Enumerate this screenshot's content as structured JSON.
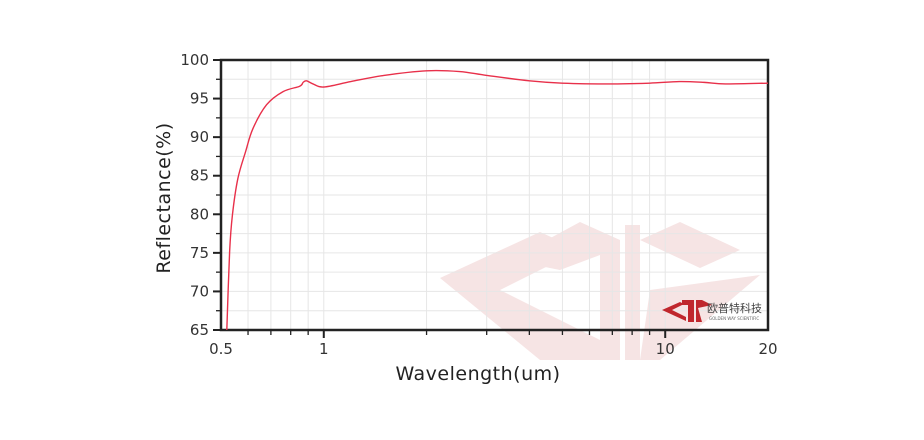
{
  "chart_data": {
    "type": "line",
    "title": "",
    "xlabel": "Wavelength(um)",
    "ylabel": "Reflectance(%)",
    "x_scale": "log",
    "xlim": [
      0.5,
      20
    ],
    "ylim": [
      65,
      100
    ],
    "x_ticks": [
      0.5,
      1,
      10,
      20
    ],
    "x_tick_labels": [
      "0.5",
      "1",
      "10",
      "20"
    ],
    "y_ticks": [
      65,
      70,
      75,
      80,
      85,
      90,
      95,
      100
    ],
    "y_tick_labels": [
      "65",
      "70",
      "75",
      "80",
      "85",
      "90",
      "95",
      "100"
    ],
    "grid": true,
    "line_color": "#e8304a",
    "series": [
      {
        "x": [
          0.52,
          0.53,
          0.54,
          0.56,
          0.59,
          0.62,
          0.68,
          0.76,
          0.85,
          0.87,
          0.89,
          0.93,
          1.0,
          1.2,
          1.5,
          2.0,
          2.5,
          3.0,
          4.0,
          5.0,
          7.0,
          9.0,
          11.0,
          13.0,
          15.0,
          20.0
        ],
        "y": [
          65,
          75.2,
          79.9,
          84.6,
          88.1,
          91.1,
          94.2,
          95.9,
          96.6,
          97.1,
          97.3,
          96.9,
          96.5,
          97.2,
          98.0,
          98.6,
          98.5,
          98.0,
          97.3,
          97.0,
          96.9,
          97.0,
          97.2,
          97.1,
          96.9,
          97.0
        ]
      }
    ]
  },
  "logo": {
    "name_cn": "欧普特科技",
    "name_en": "GOLDEN WAY SCIENTIFIC",
    "color": "#c0272d"
  }
}
